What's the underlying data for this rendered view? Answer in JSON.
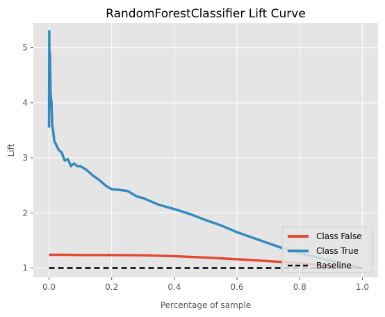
{
  "chart_data": {
    "type": "line",
    "title": "RandomForestClassifier Lift Curve",
    "xlabel": "Percentage of sample",
    "ylabel": "Lift",
    "xlim": [
      -0.05,
      1.05
    ],
    "ylim": [
      0.83,
      5.45
    ],
    "xticks": [
      0.0,
      0.2,
      0.4,
      0.6,
      0.8,
      1.0
    ],
    "xtick_labels": [
      "0.0",
      "0.2",
      "0.4",
      "0.6",
      "0.8",
      "1.0"
    ],
    "yticks": [
      1,
      2,
      3,
      4,
      5
    ],
    "ytick_labels": [
      "1",
      "2",
      "3",
      "4",
      "5"
    ],
    "grid": true,
    "legend_position": "lower-right",
    "series": [
      {
        "name": "Class False",
        "color": "#E24A33",
        "style": "solid",
        "x": [
          0.0,
          0.05,
          0.1,
          0.2,
          0.3,
          0.4,
          0.5,
          0.6,
          0.7,
          0.8,
          0.9,
          1.0
        ],
        "y": [
          1.24,
          1.24,
          1.235,
          1.235,
          1.23,
          1.215,
          1.19,
          1.16,
          1.125,
          1.09,
          1.045,
          1.0
        ]
      },
      {
        "name": "Class True",
        "color": "#348ABD",
        "style": "solid",
        "x": [
          0.0,
          0.0008,
          0.0015,
          0.0022,
          0.003,
          0.004,
          0.005,
          0.006,
          0.008,
          0.01,
          0.013,
          0.017,
          0.022,
          0.03,
          0.04,
          0.05,
          0.06,
          0.07,
          0.08,
          0.09,
          0.1,
          0.12,
          0.14,
          0.16,
          0.18,
          0.2,
          0.22,
          0.25,
          0.28,
          0.3,
          0.35,
          0.4,
          0.45,
          0.5,
          0.55,
          0.6,
          0.65,
          0.7,
          0.75,
          0.8,
          0.85,
          0.9,
          0.95,
          1.0
        ],
        "y": [
          3.55,
          5.3,
          4.3,
          3.9,
          4.9,
          4.5,
          4.2,
          4.1,
          4.0,
          3.6,
          3.5,
          3.3,
          3.25,
          3.15,
          3.1,
          2.95,
          2.98,
          2.85,
          2.9,
          2.85,
          2.85,
          2.78,
          2.68,
          2.6,
          2.5,
          2.43,
          2.42,
          2.4,
          2.3,
          2.27,
          2.15,
          2.07,
          1.98,
          1.87,
          1.77,
          1.65,
          1.55,
          1.45,
          1.35,
          1.27,
          1.2,
          1.13,
          1.06,
          1.0
        ]
      },
      {
        "name": "Baseline",
        "color": "#000000",
        "style": "dashed",
        "x": [
          0.0,
          1.0
        ],
        "y": [
          1.0,
          1.0
        ]
      }
    ]
  }
}
